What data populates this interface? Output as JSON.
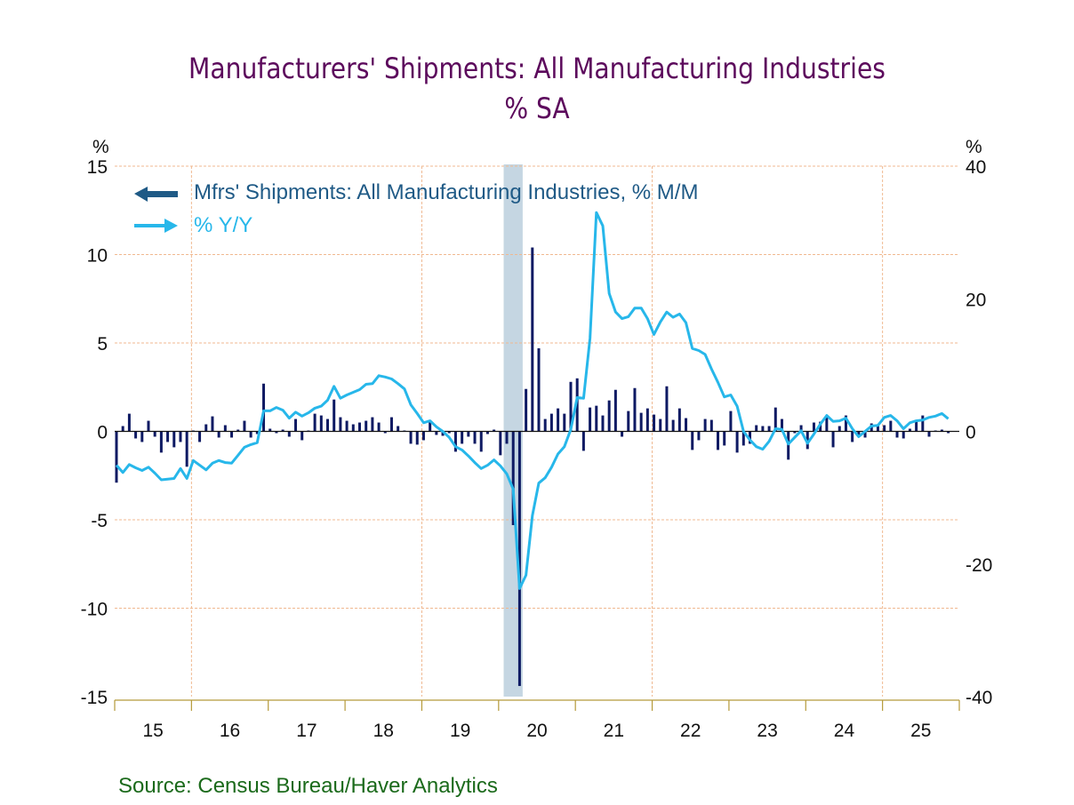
{
  "chart_data": {
    "type": "bar+line",
    "title": "Manufacturers' Shipments: All Manufacturing Industries",
    "subtitle": "%   SA",
    "source": "Source:  Census Bureau/Haver Analytics",
    "left_axis": {
      "unit": "%",
      "ylim": [
        -15,
        15
      ],
      "ticks": [
        15,
        10,
        5,
        0,
        -5,
        -10,
        -15
      ]
    },
    "right_axis": {
      "unit": "%",
      "ylim": [
        -40,
        40
      ],
      "ticks": [
        40,
        20,
        0,
        -20,
        -40
      ]
    },
    "x_axis": {
      "start": "2015-01",
      "end": "2025-12",
      "tick_labels": [
        "15",
        "16",
        "17",
        "18",
        "19",
        "20",
        "21",
        "22",
        "23",
        "24",
        "25"
      ]
    },
    "grid": true,
    "recession_shading": {
      "start": "2020-02",
      "end": "2020-04",
      "color": "#c5d6e2"
    },
    "legend": {
      "placement": "top-left"
    },
    "colors": {
      "bars": "#0e1a63",
      "line": "#27b7ea",
      "legend_bars_text": "#1f5a86",
      "legend_line_text": "#27b7ea",
      "grid": "#f0b890",
      "axis": "#b59a3a"
    },
    "series": [
      {
        "name": "Mfrs' Shipments: All Manufacturing Industries, % M/M",
        "axis": "left",
        "kind": "bar",
        "start": "2015-01",
        "values": [
          -2.9,
          0.3,
          1.0,
          -0.4,
          -0.6,
          0.6,
          -0.3,
          -1.2,
          -0.6,
          -0.9,
          -0.6,
          -2.0,
          0.05,
          -0.6,
          0.4,
          0.85,
          -0.35,
          0.35,
          -0.35,
          0.1,
          0.6,
          -0.35,
          -0.15,
          2.7,
          0.15,
          -0.1,
          0.1,
          -0.3,
          0.7,
          -0.5,
          0.05,
          1.0,
          0.9,
          0.7,
          1.8,
          0.8,
          0.6,
          0.4,
          0.5,
          0.6,
          0.8,
          0.5,
          -0.1,
          0.8,
          0.3,
          0.05,
          -0.7,
          -0.75,
          -0.5,
          0.55,
          -0.2,
          -0.25,
          -0.1,
          -1.15,
          -0.7,
          -0.3,
          -0.7,
          -1.15,
          -0.15,
          0.1,
          -1.35,
          -0.7,
          -5.3,
          -14.4,
          2.4,
          10.4,
          4.7,
          0.7,
          1.0,
          1.3,
          1.0,
          2.8,
          3.0,
          -1.1,
          1.35,
          1.45,
          0.9,
          1.75,
          2.35,
          -0.3,
          1.15,
          2.45,
          1.05,
          1.3,
          0.95,
          0.7,
          2.55,
          0.65,
          1.3,
          0.75,
          -1.05,
          -0.5,
          0.7,
          0.65,
          -1.05,
          -0.8,
          1.15,
          -1.2,
          -0.8,
          -0.7,
          0.35,
          0.3,
          0.3,
          1.35,
          0.7,
          -1.6,
          -0.1,
          0.35,
          -1.0,
          0.5,
          0.55,
          0.85,
          -0.9,
          0.3,
          0.9,
          -0.6,
          -0.25,
          -0.35,
          0.45,
          0.35,
          0.35,
          0.6,
          -0.35,
          -0.4,
          0.15,
          0.6,
          0.9,
          -0.3,
          0.05,
          0.1,
          -0.1
        ]
      },
      {
        "name": "% Y/Y",
        "axis": "right",
        "kind": "line",
        "start": "2015-01",
        "values": [
          -5.1,
          -6.2,
          -5.0,
          -5.5,
          -5.9,
          -5.4,
          -6.3,
          -7.3,
          -7.2,
          -7.1,
          -5.6,
          -7.1,
          -4.4,
          -5.1,
          -5.8,
          -4.8,
          -4.4,
          -4.7,
          -4.8,
          -3.6,
          -2.4,
          -2.0,
          -1.7,
          3.1,
          3.1,
          3.6,
          3.2,
          2.0,
          2.9,
          2.3,
          2.8,
          3.5,
          3.8,
          4.7,
          6.8,
          5.0,
          5.5,
          5.9,
          6.3,
          7.1,
          7.2,
          8.4,
          8.2,
          7.9,
          7.2,
          6.4,
          4.0,
          2.7,
          1.3,
          1.6,
          0.7,
          0.0,
          -0.9,
          -2.3,
          -2.8,
          -3.7,
          -4.7,
          -5.6,
          -5.1,
          -4.3,
          -5.2,
          -6.4,
          -8.7,
          -23.7,
          -21.7,
          -12.7,
          -7.8,
          -7.0,
          -5.4,
          -3.4,
          -2.3,
          0.3,
          5.1,
          5.0,
          14.0,
          33.0,
          31.0,
          20.8,
          18.0,
          17.0,
          17.3,
          18.6,
          18.6,
          17.0,
          14.6,
          16.5,
          18.0,
          17.2,
          17.7,
          16.4,
          12.5,
          12.2,
          11.6,
          9.4,
          7.4,
          5.2,
          5.5,
          3.8,
          0.0,
          -1.3,
          -2.3,
          -2.7,
          -1.5,
          0.4,
          0.3,
          -1.9,
          -0.9,
          0.1,
          -1.8,
          -0.4,
          1.1,
          2.4,
          1.5,
          1.6,
          2.0,
          0.4,
          -0.8,
          0.0,
          0.8,
          0.9,
          2.1,
          2.4,
          1.6,
          0.4,
          1.3,
          1.6,
          1.7,
          2.1,
          2.3,
          2.7,
          1.9
        ]
      }
    ]
  }
}
